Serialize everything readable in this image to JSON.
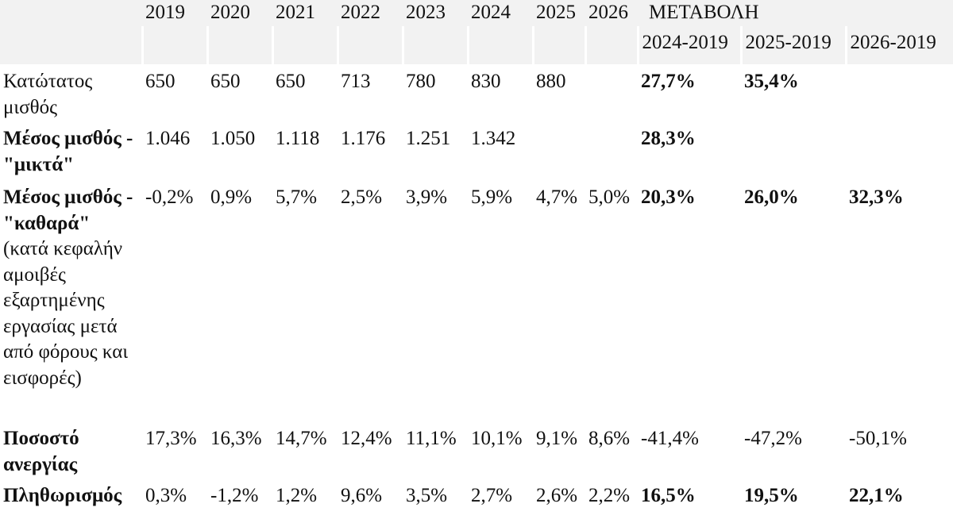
{
  "header": {
    "years": [
      "2019",
      "2020",
      "2021",
      "2022",
      "2023",
      "2024",
      "2025",
      "2026"
    ],
    "change_title": "ΜΕΤΑΒΟΛΗ",
    "change_periods": [
      "2024-2019",
      "2025-2019",
      "2026-2019"
    ]
  },
  "rows": [
    {
      "label": "Κατώτατος μισθός",
      "label_bold": false,
      "values": [
        "650",
        "650",
        "650",
        "713",
        "780",
        "830",
        "880",
        ""
      ],
      "changes": [
        "27,7%",
        "35,4%",
        ""
      ],
      "changes_bold": true
    },
    {
      "label": "Μέσος μισθός - \"μικτά\"",
      "label_bold": true,
      "values": [
        "1.046",
        "1.050",
        "1.118",
        "1.176",
        "1.251",
        "1.342",
        "",
        ""
      ],
      "changes": [
        "28,3%",
        "",
        ""
      ],
      "changes_bold": true
    },
    {
      "label": "Μέσος μισθός - \"καθαρά\"",
      "label_note": "(κατά κεφαλήν αμοιβές εξαρτημένης εργασίας μετά από φόρους και εισφορές)",
      "label_bold": true,
      "values": [
        "-0,2%",
        "0,9%",
        "5,7%",
        "2,5%",
        "3,9%",
        "5,9%",
        "4,7%",
        "5,0%"
      ],
      "changes": [
        "20,3%",
        "26,0%",
        "32,3%"
      ],
      "changes_bold": true
    },
    {
      "label": "Ποσοστό ανεργίας",
      "label_bold": true,
      "values": [
        "17,3%",
        "16,3%",
        "14,7%",
        "12,4%",
        "11,1%",
        "10,1%",
        "9,1%",
        "8,6%"
      ],
      "changes": [
        "-41,4%",
        "-47,2%",
        "-50,1%"
      ],
      "changes_bold": false
    },
    {
      "label": "Πληθωρισμός",
      "label_bold": true,
      "values": [
        "0,3%",
        "-1,2%",
        "1,2%",
        "9,6%",
        "3,5%",
        "2,7%",
        "2,6%",
        "2,2%"
      ],
      "changes": [
        "16,5%",
        "19,5%",
        "22,1%"
      ],
      "changes_bold": true
    }
  ]
}
